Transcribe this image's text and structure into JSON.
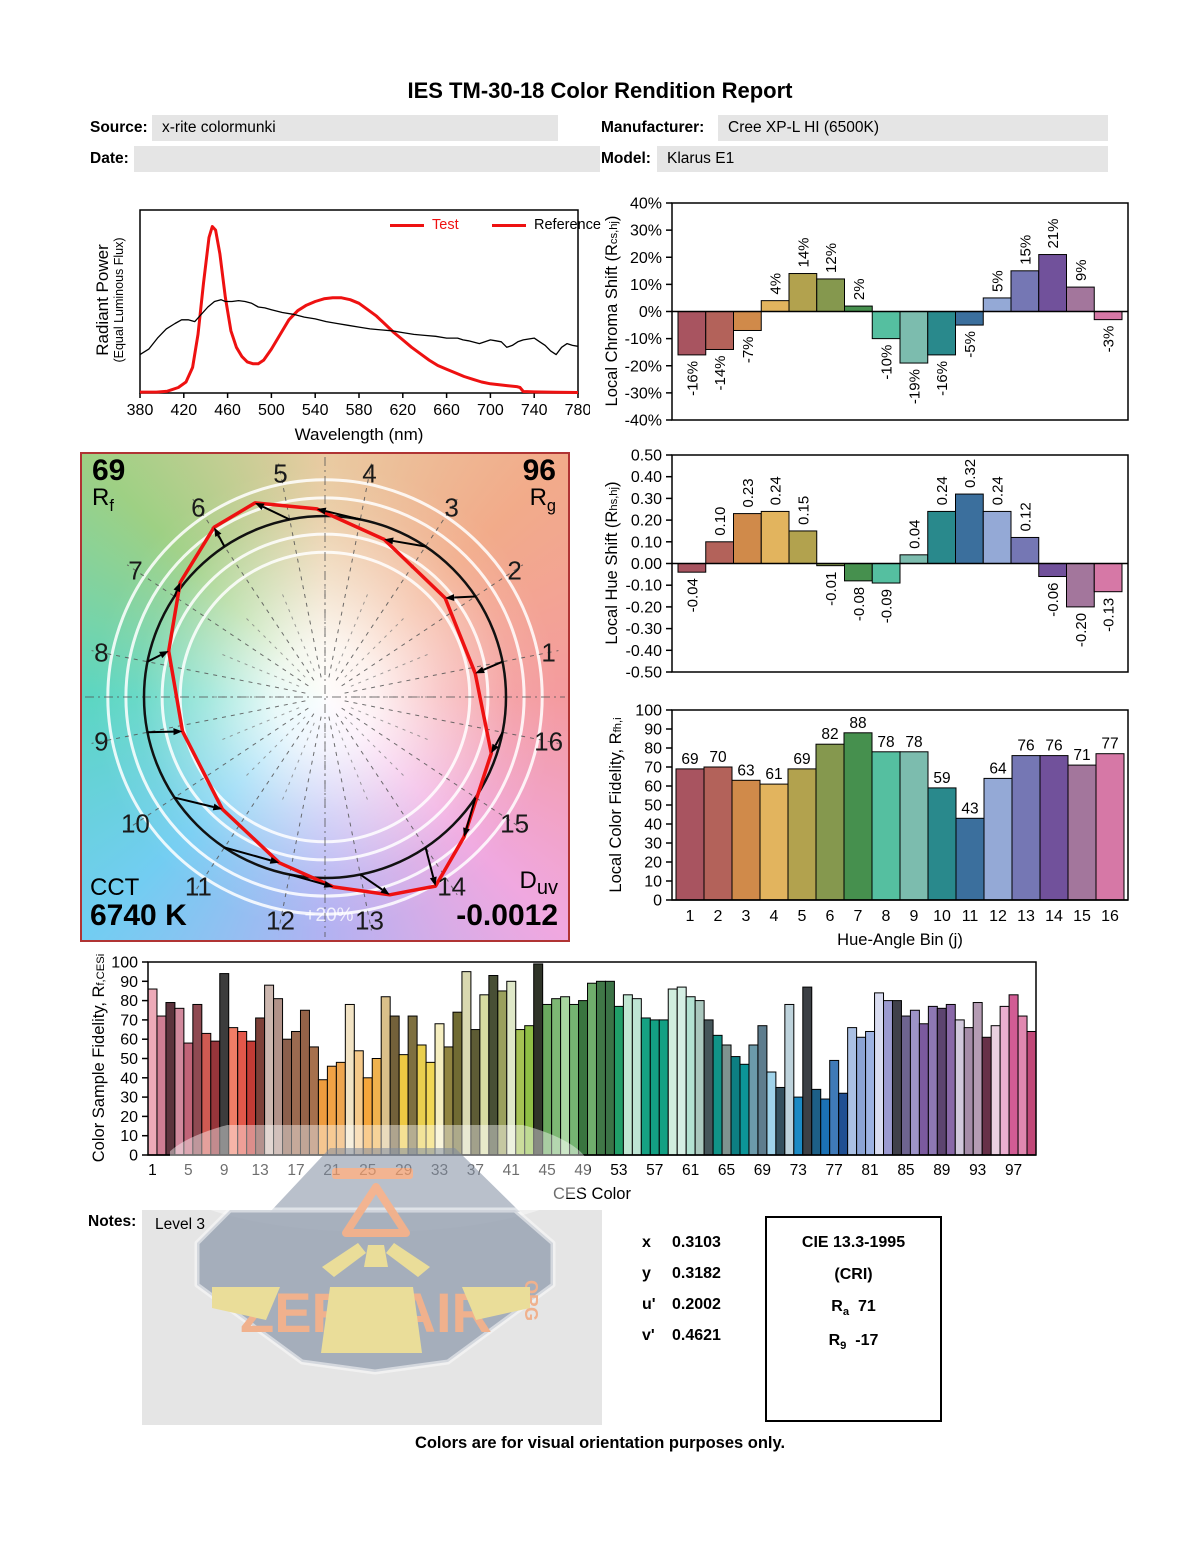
{
  "title": "IES TM-30-18 Color Rendition Report",
  "header": {
    "source_label": "Source:",
    "source_value": "x-rite colormunki",
    "date_label": "Date:",
    "date_value": "",
    "manufacturer_label": "Manufacturer:",
    "manufacturer_value": "Cree XP-L HI (6500K)",
    "model_label": "Model:",
    "model_value": "Klarus E1"
  },
  "colors": {
    "test_red": "#ee1111",
    "reference_black": "#000000",
    "field_grey": "#e5e5e5",
    "watermark_grey": "#8d99ab",
    "watermark_orange": "#f2a87e",
    "watermark_yellow": "#ecdc8c"
  },
  "bin_colors": [
    "#a85460",
    "#b3625a",
    "#d08a4a",
    "#e2b45e",
    "#b2a24e",
    "#85984e",
    "#46904e",
    "#55bfa0",
    "#7cbcae",
    "#29898c",
    "#3b6f9d",
    "#94a9d6",
    "#7577b4",
    "#71519b",
    "#a3769c",
    "#d678a6"
  ],
  "chart_data": [
    {
      "type": "line",
      "name": "spectral_power_distribution",
      "xlabel": "Wavelength (nm)",
      "ylabel": "Radiant Power",
      "ylabel2": "(Equal Luminous Flux)",
      "xlim": [
        380,
        780
      ],
      "x_ticks": [
        380,
        420,
        460,
        500,
        540,
        580,
        620,
        660,
        700,
        740,
        780
      ],
      "legend": [
        {
          "label": "Test",
          "color": "#ee1111"
        },
        {
          "label": "Reference",
          "color": "#000000"
        }
      ],
      "series": [
        {
          "name": "Test",
          "color": "#ee1111",
          "width": 3,
          "points": [
            [
              380,
              0.005
            ],
            [
              395,
              0.005
            ],
            [
              405,
              0.01
            ],
            [
              415,
              0.03
            ],
            [
              422,
              0.06
            ],
            [
              428,
              0.14
            ],
            [
              433,
              0.32
            ],
            [
              438,
              0.6
            ],
            [
              443,
              0.85
            ],
            [
              446,
              0.91
            ],
            [
              449,
              0.89
            ],
            [
              453,
              0.76
            ],
            [
              458,
              0.52
            ],
            [
              463,
              0.34
            ],
            [
              468,
              0.25
            ],
            [
              473,
              0.2
            ],
            [
              478,
              0.17
            ],
            [
              483,
              0.16
            ],
            [
              488,
              0.16
            ],
            [
              493,
              0.18
            ],
            [
              500,
              0.24
            ],
            [
              508,
              0.32
            ],
            [
              516,
              0.4
            ],
            [
              524,
              0.45
            ],
            [
              532,
              0.48
            ],
            [
              540,
              0.5
            ],
            [
              548,
              0.515
            ],
            [
              556,
              0.52
            ],
            [
              564,
              0.52
            ],
            [
              572,
              0.51
            ],
            [
              580,
              0.49
            ],
            [
              588,
              0.455
            ],
            [
              596,
              0.42
            ],
            [
              604,
              0.375
            ],
            [
              612,
              0.33
            ],
            [
              620,
              0.29
            ],
            [
              628,
              0.25
            ],
            [
              636,
              0.215
            ],
            [
              644,
              0.18
            ],
            [
              652,
              0.15
            ],
            [
              660,
              0.13
            ],
            [
              668,
              0.11
            ],
            [
              676,
              0.09
            ],
            [
              684,
              0.075
            ],
            [
              692,
              0.06
            ],
            [
              700,
              0.05
            ],
            [
              708,
              0.045
            ],
            [
              716,
              0.04
            ],
            [
              724,
              0.035
            ],
            [
              727,
              0.03
            ],
            [
              730,
              0.008
            ],
            [
              740,
              0.006
            ],
            [
              760,
              0.004
            ],
            [
              780,
              0.003
            ]
          ]
        },
        {
          "name": "Reference",
          "color": "#000000",
          "width": 1.3,
          "points": [
            [
              380,
              0.21
            ],
            [
              388,
              0.24
            ],
            [
              396,
              0.3
            ],
            [
              404,
              0.35
            ],
            [
              412,
              0.38
            ],
            [
              418,
              0.4
            ],
            [
              424,
              0.4
            ],
            [
              430,
              0.39
            ],
            [
              436,
              0.43
            ],
            [
              442,
              0.47
            ],
            [
              448,
              0.5
            ],
            [
              454,
              0.51
            ],
            [
              458,
              0.5
            ],
            [
              464,
              0.5
            ],
            [
              470,
              0.505
            ],
            [
              476,
              0.5
            ],
            [
              482,
              0.49
            ],
            [
              488,
              0.47
            ],
            [
              494,
              0.465
            ],
            [
              500,
              0.455
            ],
            [
              510,
              0.44
            ],
            [
              520,
              0.43
            ],
            [
              530,
              0.415
            ],
            [
              540,
              0.405
            ],
            [
              550,
              0.39
            ],
            [
              560,
              0.38
            ],
            [
              570,
              0.37
            ],
            [
              580,
              0.36
            ],
            [
              590,
              0.35
            ],
            [
              600,
              0.345
            ],
            [
              610,
              0.34
            ],
            [
              620,
              0.33
            ],
            [
              630,
              0.32
            ],
            [
              640,
              0.315
            ],
            [
              650,
              0.31
            ],
            [
              660,
              0.3
            ],
            [
              670,
              0.3
            ],
            [
              675,
              0.29
            ],
            [
              680,
              0.285
            ],
            [
              690,
              0.27
            ],
            [
              695,
              0.28
            ],
            [
              700,
              0.29
            ],
            [
              705,
              0.285
            ],
            [
              710,
              0.28
            ],
            [
              715,
              0.25
            ],
            [
              720,
              0.26
            ],
            [
              725,
              0.28
            ],
            [
              730,
              0.29
            ],
            [
              735,
              0.295
            ],
            [
              740,
              0.3
            ],
            [
              745,
              0.28
            ],
            [
              750,
              0.26
            ],
            [
              755,
              0.23
            ],
            [
              760,
              0.21
            ],
            [
              765,
              0.25
            ],
            [
              770,
              0.27
            ],
            [
              775,
              0.26
            ],
            [
              780,
              0.255
            ]
          ]
        }
      ]
    },
    {
      "type": "bar",
      "name": "local_chroma_shift",
      "ylabel_pre": "Local Chroma Shift (R",
      "ylabel_sub": "cs,hj",
      "ylabel_post": ")",
      "ylim": [
        -40,
        40
      ],
      "ytick_step": 10,
      "ytick_suffix": "%",
      "label_suffix": "%",
      "categories": [
        1,
        2,
        3,
        4,
        5,
        6,
        7,
        8,
        9,
        10,
        11,
        12,
        13,
        14,
        15,
        16
      ],
      "values": [
        -16,
        -14,
        -7,
        4,
        14,
        12,
        2,
        -10,
        -19,
        -16,
        -5,
        5,
        15,
        21,
        9,
        -3
      ]
    },
    {
      "type": "bar",
      "name": "local_hue_shift",
      "ylabel_pre": "Local Hue Shift (R",
      "ylabel_sub": "hs,hj",
      "ylabel_post": ")",
      "ylim": [
        -0.5,
        0.5
      ],
      "ytick_step": 0.1,
      "decimals": 2,
      "categories": [
        1,
        2,
        3,
        4,
        5,
        6,
        7,
        8,
        9,
        10,
        11,
        12,
        13,
        14,
        15,
        16
      ],
      "values": [
        -0.04,
        0.1,
        0.23,
        0.24,
        0.15,
        -0.01,
        -0.08,
        -0.09,
        0.04,
        0.24,
        0.32,
        0.24,
        0.12,
        -0.06,
        -0.2,
        -0.13
      ]
    },
    {
      "type": "bar",
      "name": "local_color_fidelity",
      "ylabel_pre": "Local Color Fidelity, R",
      "ylabel_sub": "fh,i",
      "ylabel_post": "",
      "xlabel": "Hue-Angle Bin (j)",
      "ylim": [
        0,
        100
      ],
      "ytick_step": 10,
      "categories": [
        1,
        2,
        3,
        4,
        5,
        6,
        7,
        8,
        9,
        10,
        11,
        12,
        13,
        14,
        15,
        16
      ],
      "values": [
        69,
        70,
        63,
        61,
        69,
        82,
        88,
        78,
        78,
        59,
        43,
        64,
        76,
        76,
        71,
        77
      ]
    },
    {
      "type": "bar",
      "name": "color_sample_fidelity",
      "ylabel_pre": "Color Sample Fidelity, R",
      "ylabel_sub": "f,CESi",
      "ylabel_post": "",
      "xlabel": "CES Color",
      "ylim": [
        0,
        100
      ],
      "ytick_step": 10,
      "x_ticks": [
        1,
        5,
        9,
        13,
        17,
        21,
        25,
        29,
        33,
        37,
        41,
        45,
        49,
        53,
        57,
        61,
        65,
        69,
        73,
        77,
        81,
        85,
        89,
        93,
        97
      ],
      "values": [
        86,
        72,
        79,
        76,
        58,
        78,
        63,
        59,
        94,
        66,
        64,
        59,
        71,
        88,
        81,
        60,
        64,
        75,
        56,
        39,
        46,
        48,
        78,
        54,
        40,
        50,
        82,
        72,
        52,
        72,
        57,
        48,
        68,
        56,
        74,
        95,
        65,
        83,
        93,
        85,
        90,
        65,
        67,
        99,
        78,
        81,
        82,
        78,
        80,
        89,
        90,
        90,
        77,
        83,
        81,
        71,
        70,
        70,
        86,
        87,
        82,
        80,
        70,
        62,
        57,
        51,
        47,
        57,
        67,
        43,
        35,
        78,
        30,
        87,
        34,
        29,
        49,
        32,
        66,
        61,
        64,
        84,
        80,
        80,
        72,
        75,
        68,
        77,
        76,
        78,
        70,
        66,
        79,
        61,
        67,
        77,
        83,
        72,
        64
      ],
      "bar_colors": [
        "#edaab8",
        "#cf7d93",
        "#5d333d",
        "#d2899d",
        "#c16478",
        "#8f4a52",
        "#d15a52",
        "#97353a",
        "#3c3c3c",
        "#f07d66",
        "#e3584a",
        "#c33b35",
        "#7d4038",
        "#ccb7af",
        "#b19289",
        "#8b5f4c",
        "#9b6a50",
        "#946248",
        "#a6704d",
        "#ee9c3e",
        "#f1a245",
        "#eea54f",
        "#f2e3c4",
        "#f5c98a",
        "#f5a63c",
        "#efb24e",
        "#dac08a",
        "#73613a",
        "#edc943",
        "#7e7040",
        "#e9cf4e",
        "#f1d755",
        "#f5eec0",
        "#908440",
        "#706b33",
        "#d9d8b0",
        "#5e5c35",
        "#d7dba2",
        "#484f35",
        "#9aa05c",
        "#dfe8c8",
        "#a5c253",
        "#8fbf45",
        "#2f3428",
        "#6aa85e",
        "#7db874",
        "#a8d5a0",
        "#75b472",
        "#39753f",
        "#70ae6c",
        "#407747",
        "#3b7346",
        "#209e68",
        "#c0e6d2",
        "#bde4d4",
        "#15a183",
        "#13a083",
        "#12a083",
        "#d0eede",
        "#d5efe4",
        "#b3e2d2",
        "#aac8be",
        "#45565a",
        "#109488",
        "#7f938f",
        "#0d7f82",
        "#0c9598",
        "#6c9bab",
        "#5e7d8e",
        "#a0d3ea",
        "#34505e",
        "#bed3dc",
        "#1c8ac4",
        "#3c4045",
        "#1d5f86",
        "#1b71b4",
        "#3f7ab8",
        "#204f92",
        "#aac0e4",
        "#8ba3d4",
        "#9db2e2",
        "#d9dcf0",
        "#9b9ad0",
        "#40404a",
        "#6e6490",
        "#9d94c8",
        "#7b5a9e",
        "#8e78b4",
        "#5d4470",
        "#8968a8",
        "#d1c8dc",
        "#a58ca8",
        "#b59cb4",
        "#673048",
        "#e9d0e0",
        "#ebaed0",
        "#d15c94",
        "#e188b0",
        "#c14878"
      ]
    }
  ],
  "cvg": {
    "rf_value": "69",
    "rf_label": "R",
    "rf_sub": "f",
    "rg_value": "96",
    "rg_label": "R",
    "rg_sub": "g",
    "cct_label": "CCT",
    "cct_value": "6740 K",
    "duv_label": "D",
    "duv_sub": "uv",
    "duv_value": "-0.0012",
    "ring_label": "+20%",
    "bins": [
      1,
      2,
      3,
      4,
      5,
      6,
      7,
      8,
      9,
      10,
      11,
      12,
      13,
      14,
      15,
      16
    ],
    "chroma_shift_pct": [
      -16,
      -14,
      -7,
      4,
      14,
      12,
      2,
      -10,
      -19,
      -16,
      -5,
      5,
      15,
      21,
      9,
      -3
    ],
    "hue_shift": [
      -0.04,
      0.1,
      0.23,
      0.24,
      0.15,
      -0.01,
      -0.08,
      -0.09,
      0.04,
      0.24,
      0.32,
      0.24,
      0.12,
      -0.06,
      -0.2,
      -0.13
    ]
  },
  "notes": {
    "label": "Notes:",
    "value": "Level 3"
  },
  "chromaticity": {
    "rows": [
      {
        "label": "x",
        "value": "0.3103"
      },
      {
        "label": "y",
        "value": "0.3182"
      },
      {
        "label": "u'",
        "value": "0.2002"
      },
      {
        "label": "v'",
        "value": "0.4621"
      }
    ]
  },
  "cri": {
    "title": "CIE 13.3-1995",
    "subtitle": "(CRI)",
    "rows": [
      {
        "label": "R",
        "sub": "a",
        "value": "71"
      },
      {
        "label": "R",
        "sub": "9",
        "value": "-17"
      }
    ]
  },
  "watermark": {
    "text": "ZEROAIR",
    "org": "ORG"
  },
  "footer": "Colors are for visual orientation purposes only."
}
